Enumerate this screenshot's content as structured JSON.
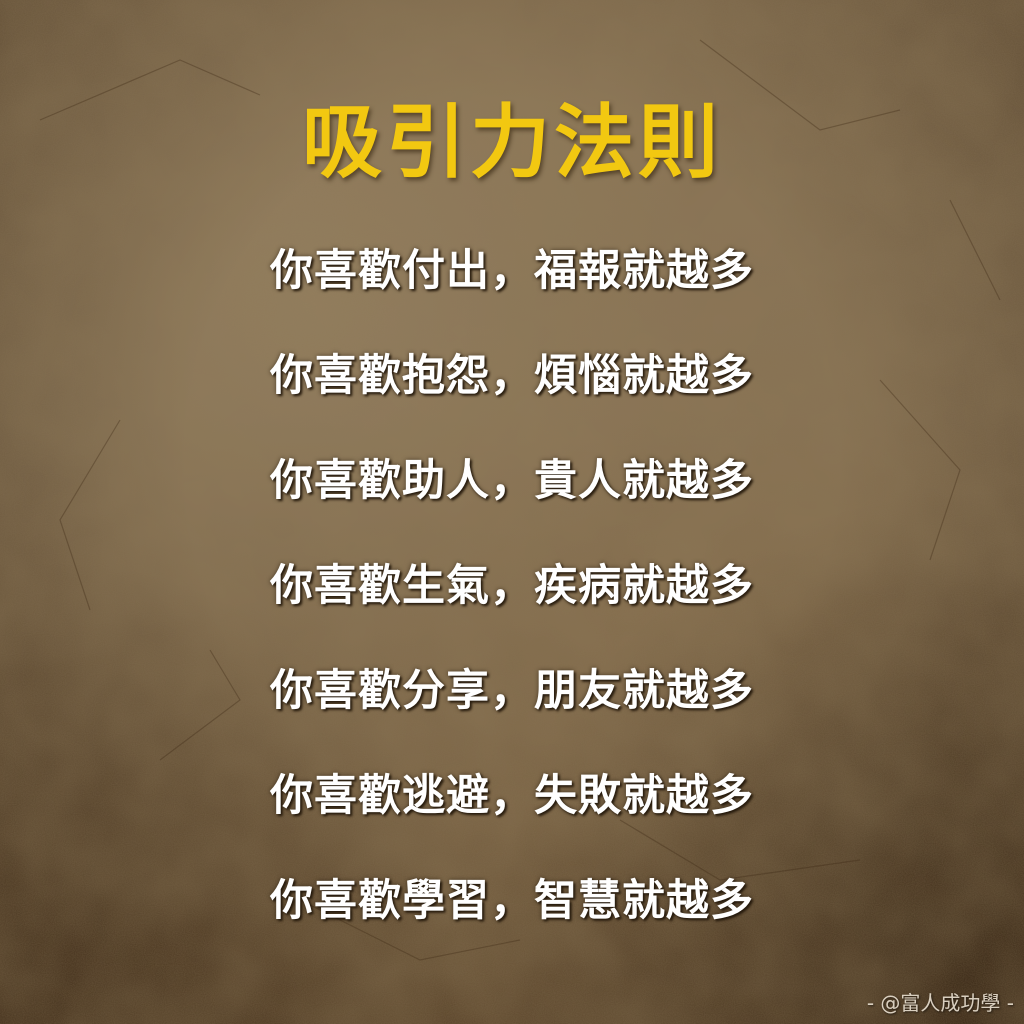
{
  "title": "吸引力法則",
  "lines": [
    "你喜歡付出，福報就越多",
    "你喜歡抱怨，煩惱就越多",
    "你喜歡助人，貴人就越多",
    "你喜歡生氣，疾病就越多",
    "你喜歡分享，朋友就越多",
    "你喜歡逃避，失敗就越多",
    "你喜歡學習，智慧就越多"
  ],
  "watermark": "- @富人成功學 -",
  "colors": {
    "title": "#f2c811",
    "text": "#ffffff",
    "background": "#857052"
  }
}
